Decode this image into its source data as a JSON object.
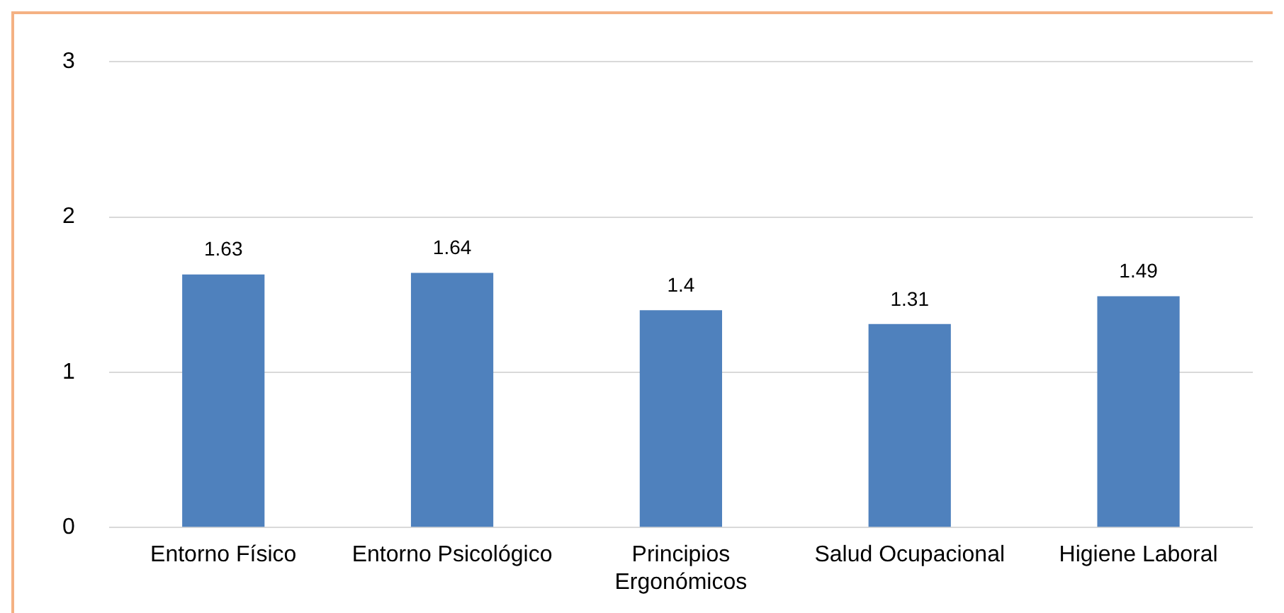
{
  "chart_data": {
    "type": "bar",
    "categories": [
      "Entorno Físico",
      "Entorno Psicológico",
      "Principios Ergonómicos",
      "Salud Ocupacional",
      "Higiene Laboral"
    ],
    "values": [
      1.63,
      1.64,
      1.4,
      1.31,
      1.49
    ],
    "color": "#4f81bd",
    "ylim": [
      0,
      3
    ],
    "yticks": [
      0,
      1,
      2,
      3
    ],
    "grid": "y",
    "data_labels": true,
    "legend": false
  }
}
